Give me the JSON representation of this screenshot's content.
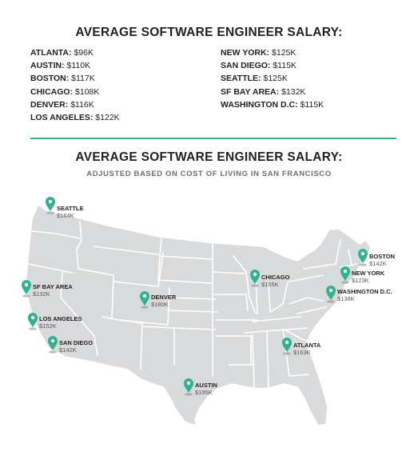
{
  "title": "AVERAGE SOFTWARE ENGINEER SALARY:",
  "salaries_left": [
    {
      "city": "ATLANTA:",
      "value": "$96K"
    },
    {
      "city": "AUSTIN:",
      "value": "$110K"
    },
    {
      "city": "BOSTON:",
      "value": "$117K"
    },
    {
      "city": "CHICAGO:",
      "value": "$108K"
    },
    {
      "city": "DENVER:",
      "value": "$116K"
    },
    {
      "city": "LOS ANGELES:",
      "value": "$122K"
    }
  ],
  "salaries_right": [
    {
      "city": "NEW YORK:",
      "value": "$125K"
    },
    {
      "city": "SAN DIEGO:",
      "value": "$115K"
    },
    {
      "city": "SEATTLE:",
      "value": "$125K"
    },
    {
      "city": "SF BAY AREA:",
      "value": "$132K"
    },
    {
      "city": "WASHINGTON D.C:",
      "value": "$115K"
    }
  ],
  "adjusted_title": "AVERAGE SOFTWARE ENGINEER SALARY:",
  "adjusted_subtitle": "ADJUSTED BASED ON COST OF LIVING IN SAN FRANCISCO",
  "colors": {
    "accent": "#2db391",
    "map_fill": "#d9dadb",
    "map_border": "#ffffff"
  },
  "markers": [
    {
      "city": "SEATTLE",
      "value": "$164K"
    },
    {
      "city": "SF BAY AREA",
      "value": "$132K"
    },
    {
      "city": "LOS ANGELES",
      "value": "$152K"
    },
    {
      "city": "SAN DIEGO",
      "value": "$142K"
    },
    {
      "city": "DENVER",
      "value": "$180K"
    },
    {
      "city": "AUSTIN",
      "value": "$195K"
    },
    {
      "city": "CHICAGO",
      "value": "$155K"
    },
    {
      "city": "ATLANTA",
      "value": "$163K"
    },
    {
      "city": "BOSTON",
      "value": "$142K"
    },
    {
      "city": "NEW YORK",
      "value": "$123K"
    },
    {
      "city": "WASHINGTON  D.C.",
      "value": "$136K"
    }
  ]
}
